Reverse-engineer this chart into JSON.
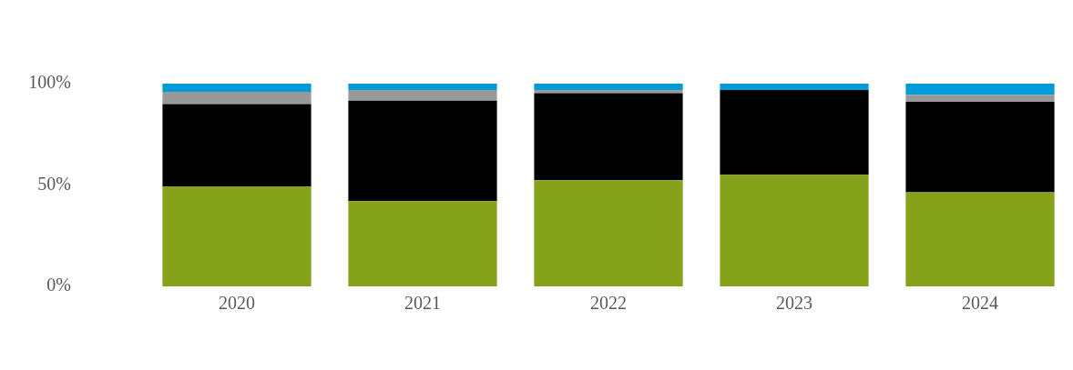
{
  "chart_data": {
    "type": "bar",
    "stacked": true,
    "categories": [
      "2020",
      "2021",
      "2022",
      "2023",
      "2024"
    ],
    "series": [
      {
        "color": "#86a219",
        "values": [
          49.3,
          42.0,
          52.4,
          55.1,
          46.4
        ]
      },
      {
        "color": "#000000",
        "values": [
          40.6,
          49.6,
          42.9,
          41.8,
          44.6
        ]
      },
      {
        "color": "#999999",
        "values": [
          6.1,
          5.3,
          1.6,
          0,
          3.4
        ]
      },
      {
        "color": "#009cd9",
        "values": [
          4.0,
          3.1,
          3.1,
          3.1,
          5.6
        ]
      }
    ],
    "ylim": [
      0,
      100
    ],
    "yticks": [
      {
        "value": 0,
        "label": "0%"
      },
      {
        "value": 50,
        "label": "50%"
      },
      {
        "value": 100,
        "label": "100%"
      }
    ],
    "grid": false,
    "legend": false
  }
}
